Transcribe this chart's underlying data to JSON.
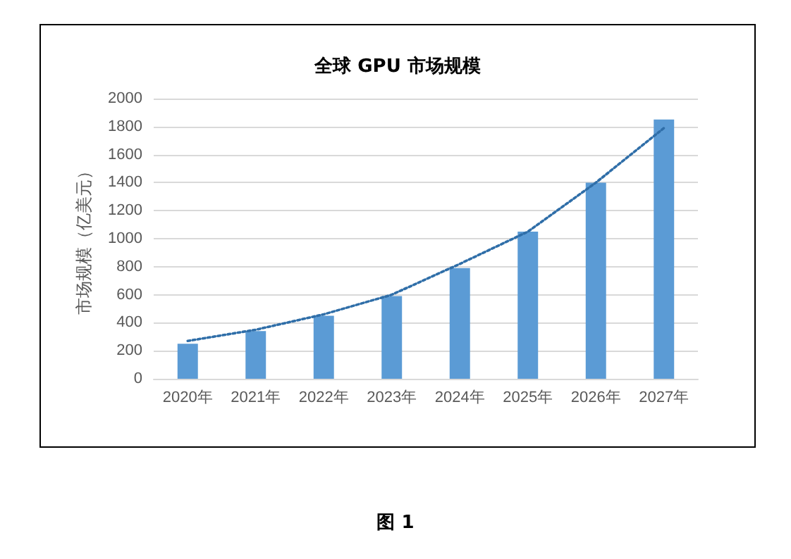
{
  "chart_data": {
    "type": "bar",
    "title": "全球 GPU 市场规模",
    "ylabel": "市场规模（亿美元）",
    "categories": [
      "2020年",
      "2021年",
      "2022年",
      "2023年",
      "2024年",
      "2025年",
      "2026年",
      "2027年"
    ],
    "series": [
      {
        "color": "#5b9bd5",
        "values": [
          250,
          340,
          450,
          590,
          790,
          1050,
          1400,
          1850
        ]
      },
      {
        "type": "line",
        "color": "#2f6ea8",
        "line_style": "dotted",
        "marker": "none",
        "x": [
          "2020年",
          "2021年",
          "2022年",
          "2023年",
          "2024年",
          "2025年",
          "2026年",
          "2027年"
        ],
        "values": [
          270,
          350,
          460,
          600,
          820,
          1050,
          1400,
          1790
        ]
      }
    ],
    "ylim": [
      0,
      2000
    ],
    "yticks": [
      0,
      200,
      400,
      600,
      800,
      1000,
      1200,
      1400,
      1600,
      1800,
      2000
    ],
    "grid": "y",
    "annotations": [
      "图 1"
    ]
  }
}
